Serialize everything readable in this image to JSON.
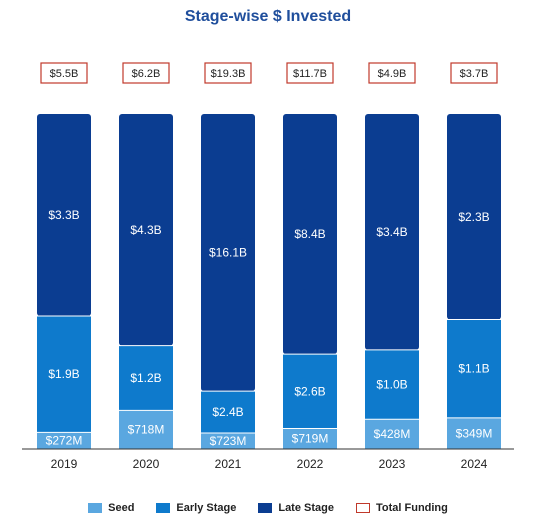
{
  "chart_data": {
    "type": "bar",
    "stacked": true,
    "title": "Stage-wise $ Invested",
    "categories": [
      "2019",
      "2020",
      "2021",
      "2022",
      "2023",
      "2024"
    ],
    "unit": "$B",
    "series": [
      {
        "name": "Seed",
        "values": [
          0.272,
          0.718,
          0.723,
          0.719,
          0.428,
          0.349
        ],
        "labels": [
          "$272M",
          "$718M",
          "$723M",
          "$719M",
          "$428M",
          "$349M"
        ],
        "color": "#5aa7e0"
      },
      {
        "name": "Early Stage",
        "values": [
          1.9,
          1.2,
          2.4,
          2.6,
          1.0,
          1.1
        ],
        "labels": [
          "$1.9B",
          "$1.2B",
          "$2.4B",
          "$2.6B",
          "$1.0B",
          "$1.1B"
        ],
        "color": "#0e7acc"
      },
      {
        "name": "Late Stage",
        "values": [
          3.3,
          4.3,
          16.1,
          8.4,
          3.4,
          2.3
        ],
        "labels": [
          "$3.3B",
          "$4.3B",
          "$16.1B",
          "$8.4B",
          "$3.4B",
          "$2.3B"
        ],
        "color": "#0b3d91"
      }
    ],
    "totals": {
      "name": "Total Funding",
      "values": [
        5.5,
        6.2,
        19.3,
        11.7,
        4.9,
        3.7
      ],
      "labels": [
        "$5.5B",
        "$6.2B",
        "$19.3B",
        "$11.7B",
        "$4.9B",
        "$3.7B"
      ],
      "border_color": "#c0392b"
    },
    "legend_position": "bottom",
    "grid": false,
    "normalized_100_percent": true
  }
}
